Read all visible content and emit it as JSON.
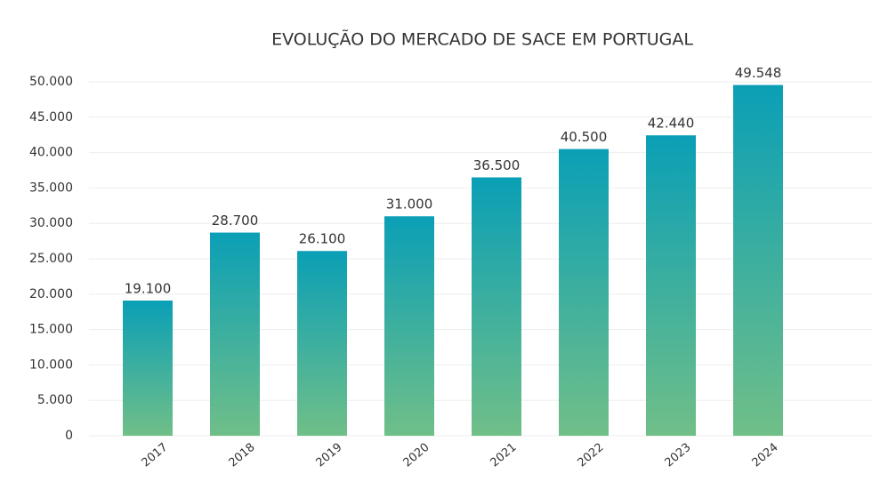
{
  "chart_data": {
    "type": "bar",
    "title": "EVOLUÇÃO DO MERCADO DE SACE EM PORTUGAL",
    "categories": [
      "2017",
      "2018",
      "2019",
      "2020",
      "2021",
      "2022",
      "2023",
      "2024"
    ],
    "values": [
      19100,
      28700,
      26100,
      31000,
      36500,
      40500,
      42440,
      49548
    ],
    "value_labels": [
      "19.100",
      "28.700",
      "26.100",
      "31.000",
      "36.500",
      "40.500",
      "42.440",
      "49.548"
    ],
    "color": [
      "#0a9fb6",
      "#70bf88"
    ],
    "ylim": [
      0,
      50000
    ],
    "yticks": [
      0,
      {
        "value": 5000,
        "label": "5.000"
      },
      {
        "value": 10000,
        "label": "10.000"
      },
      {
        "value": 15000,
        "label": "15.000"
      },
      {
        "value": 20000,
        "label": "20.000"
      },
      {
        "value": 25000,
        "label": "25.000"
      },
      {
        "value": 30000,
        "label": "30.000"
      },
      {
        "value": 35000,
        "label": "35.000"
      },
      {
        "value": 40000,
        "label": "40.000"
      },
      {
        "value": 45000,
        "label": "45.000"
      },
      {
        "value": 50000,
        "label": "50.000"
      }
    ],
    "grid": true
  }
}
